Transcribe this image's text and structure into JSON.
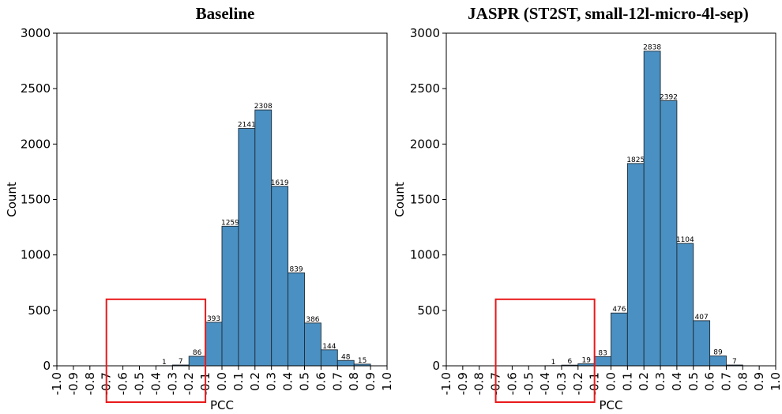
{
  "chart_data": [
    {
      "type": "bar",
      "title": "Baseline",
      "xlabel": "PCC",
      "ylabel": "Count",
      "ylim": [
        0,
        3000
      ],
      "xlim": [
        -1.0,
        1.0
      ],
      "yticks": [
        "0",
        "500",
        "1000",
        "1500",
        "2000",
        "2500",
        "3000"
      ],
      "xticks": [
        "-1.0",
        "-0.9",
        "-0.8",
        "-0.7",
        "-0.6",
        "-0.5",
        "-0.4",
        "-0.3",
        "-0.2",
        "-0.1",
        "0.0",
        "0.1",
        "0.2",
        "0.3",
        "0.4",
        "0.5",
        "0.6",
        "0.7",
        "0.8",
        "0.9",
        "1.0"
      ],
      "bin_width": 0.1,
      "bins": [
        {
          "start": -0.4,
          "value": 1
        },
        {
          "start": -0.3,
          "value": 7
        },
        {
          "start": -0.2,
          "value": 86
        },
        {
          "start": -0.1,
          "value": 393
        },
        {
          "start": 0.0,
          "value": 1259
        },
        {
          "start": 0.1,
          "value": 2141
        },
        {
          "start": 0.2,
          "value": 2308
        },
        {
          "start": 0.3,
          "value": 1619
        },
        {
          "start": 0.4,
          "value": 839
        },
        {
          "start": 0.5,
          "value": 386
        },
        {
          "start": 0.6,
          "value": 144
        },
        {
          "start": 0.7,
          "value": 48
        },
        {
          "start": 0.8,
          "value": 15
        }
      ],
      "highlight": {
        "x_range": [
          -0.7,
          -0.1
        ],
        "y_max": 600,
        "color": "#e8191a"
      },
      "bar_color": "#4a90c2",
      "grid": false
    },
    {
      "type": "bar",
      "title": "JASPR (ST2ST, small-12l-micro-4l-sep)",
      "xlabel": "PCC",
      "ylabel": "Count",
      "ylim": [
        0,
        3000
      ],
      "xlim": [
        -1.0,
        1.0
      ],
      "yticks": [
        "0",
        "500",
        "1000",
        "1500",
        "2000",
        "2500",
        "3000"
      ],
      "xticks": [
        "-1.0",
        "-0.9",
        "-0.8",
        "-0.7",
        "-0.6",
        "-0.5",
        "-0.4",
        "-0.3",
        "-0.2",
        "-0.1",
        "0.0",
        "0.1",
        "0.2",
        "0.3",
        "0.4",
        "0.5",
        "0.6",
        "0.7",
        "0.8",
        "0.9",
        "1.0"
      ],
      "bin_width": 0.1,
      "bins": [
        {
          "start": -0.4,
          "value": 1
        },
        {
          "start": -0.3,
          "value": 6
        },
        {
          "start": -0.2,
          "value": 19
        },
        {
          "start": -0.1,
          "value": 83
        },
        {
          "start": 0.0,
          "value": 476
        },
        {
          "start": 0.1,
          "value": 1825
        },
        {
          "start": 0.2,
          "value": 2838
        },
        {
          "start": 0.3,
          "value": 2392
        },
        {
          "start": 0.4,
          "value": 1104
        },
        {
          "start": 0.5,
          "value": 407
        },
        {
          "start": 0.6,
          "value": 89
        },
        {
          "start": 0.7,
          "value": 7
        }
      ],
      "highlight": {
        "x_range": [
          -0.7,
          -0.1
        ],
        "y_max": 600,
        "color": "#e8191a"
      },
      "bar_color": "#4a90c2",
      "grid": false
    }
  ]
}
